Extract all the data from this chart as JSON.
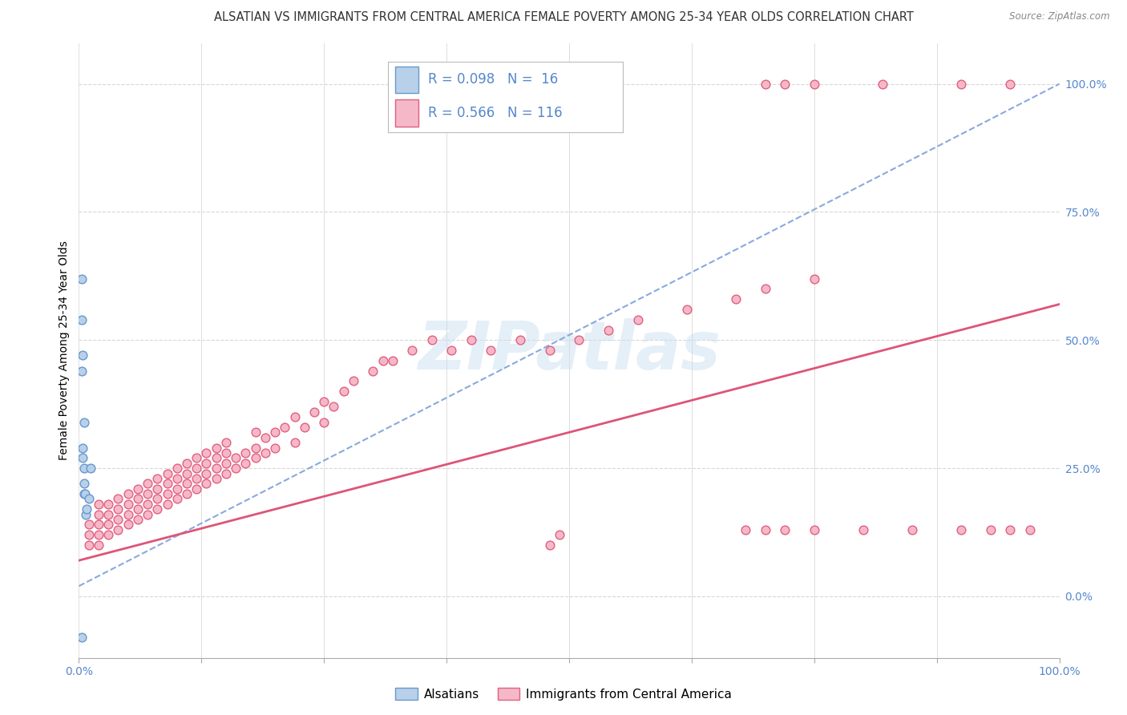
{
  "title": "ALSATIAN VS IMMIGRANTS FROM CENTRAL AMERICA FEMALE POVERTY AMONG 25-34 YEAR OLDS CORRELATION CHART",
  "source": "Source: ZipAtlas.com",
  "ylabel": "Female Poverty Among 25-34 Year Olds",
  "watermark": "ZIPatlas",
  "label1": "Alsatians",
  "label2": "Immigrants from Central America",
  "legend_r1": "R = 0.098",
  "legend_n1": "N =  16",
  "legend_r2": "R = 0.566",
  "legend_n2": "N = 116",
  "alsatian_face": "#b8d0ea",
  "alsatian_edge": "#6699cc",
  "immigrant_face": "#f5b8c8",
  "immigrant_edge": "#e06080",
  "trendline_als_color": "#88aadd",
  "trendline_imm_color": "#dd5577",
  "grid_color": "#d8d8d8",
  "right_tick_color": "#5588cc",
  "xtick_color": "#5588cc",
  "title_fontsize": 10.5,
  "axis_label_fontsize": 10,
  "tick_fontsize": 10,
  "marker_size": 60,
  "xlim": [
    0.0,
    1.0
  ],
  "ylim": [
    -0.12,
    1.08
  ],
  "yticks": [
    0.0,
    0.25,
    0.5,
    0.75,
    1.0
  ],
  "ytick_labels": [
    "0.0%",
    "25.0%",
    "50.0%",
    "75.0%",
    "100.0%"
  ],
  "als_x": [
    0.003,
    0.003,
    0.003,
    0.004,
    0.004,
    0.004,
    0.005,
    0.005,
    0.005,
    0.005,
    0.006,
    0.007,
    0.008,
    0.01,
    0.012,
    0.003
  ],
  "als_y": [
    0.62,
    0.54,
    0.44,
    0.29,
    0.27,
    0.47,
    0.25,
    0.22,
    0.2,
    0.34,
    0.2,
    0.16,
    0.17,
    0.19,
    0.25,
    -0.08
  ],
  "imm_x": [
    0.01,
    0.01,
    0.01,
    0.02,
    0.02,
    0.02,
    0.02,
    0.02,
    0.03,
    0.03,
    0.03,
    0.03,
    0.04,
    0.04,
    0.04,
    0.04,
    0.05,
    0.05,
    0.05,
    0.05,
    0.06,
    0.06,
    0.06,
    0.06,
    0.07,
    0.07,
    0.07,
    0.07,
    0.08,
    0.08,
    0.08,
    0.08,
    0.09,
    0.09,
    0.09,
    0.09,
    0.1,
    0.1,
    0.1,
    0.1,
    0.11,
    0.11,
    0.11,
    0.11,
    0.12,
    0.12,
    0.12,
    0.12,
    0.13,
    0.13,
    0.13,
    0.13,
    0.14,
    0.14,
    0.14,
    0.14,
    0.15,
    0.15,
    0.15,
    0.15,
    0.16,
    0.16,
    0.17,
    0.17,
    0.18,
    0.18,
    0.18,
    0.19,
    0.19,
    0.2,
    0.2,
    0.21,
    0.22,
    0.22,
    0.23,
    0.24,
    0.25,
    0.25,
    0.26,
    0.27,
    0.28,
    0.3,
    0.31,
    0.32,
    0.34,
    0.36,
    0.38,
    0.4,
    0.42,
    0.45,
    0.48,
    0.51,
    0.54,
    0.57,
    0.62,
    0.67,
    0.7,
    0.75,
    0.48,
    0.49,
    0.68,
    0.7,
    0.72,
    0.75,
    0.8,
    0.85,
    0.9,
    0.93,
    0.95,
    0.97,
    0.7,
    0.72,
    0.75,
    0.82,
    0.9,
    0.95
  ],
  "imm_y": [
    0.1,
    0.12,
    0.14,
    0.1,
    0.12,
    0.14,
    0.16,
    0.18,
    0.12,
    0.14,
    0.16,
    0.18,
    0.13,
    0.15,
    0.17,
    0.19,
    0.14,
    0.16,
    0.18,
    0.2,
    0.15,
    0.17,
    0.19,
    0.21,
    0.16,
    0.18,
    0.2,
    0.22,
    0.17,
    0.19,
    0.21,
    0.23,
    0.18,
    0.2,
    0.22,
    0.24,
    0.19,
    0.21,
    0.23,
    0.25,
    0.2,
    0.22,
    0.24,
    0.26,
    0.21,
    0.23,
    0.25,
    0.27,
    0.22,
    0.24,
    0.26,
    0.28,
    0.23,
    0.25,
    0.27,
    0.29,
    0.24,
    0.26,
    0.28,
    0.3,
    0.25,
    0.27,
    0.26,
    0.28,
    0.27,
    0.29,
    0.32,
    0.28,
    0.31,
    0.29,
    0.32,
    0.33,
    0.3,
    0.35,
    0.33,
    0.36,
    0.34,
    0.38,
    0.37,
    0.4,
    0.42,
    0.44,
    0.46,
    0.46,
    0.48,
    0.5,
    0.48,
    0.5,
    0.48,
    0.5,
    0.48,
    0.5,
    0.52,
    0.54,
    0.56,
    0.58,
    0.6,
    0.62,
    0.1,
    0.12,
    0.13,
    0.13,
    0.13,
    0.13,
    0.13,
    0.13,
    0.13,
    0.13,
    0.13,
    0.13,
    1.0,
    1.0,
    1.0,
    1.0,
    1.0,
    1.0
  ]
}
